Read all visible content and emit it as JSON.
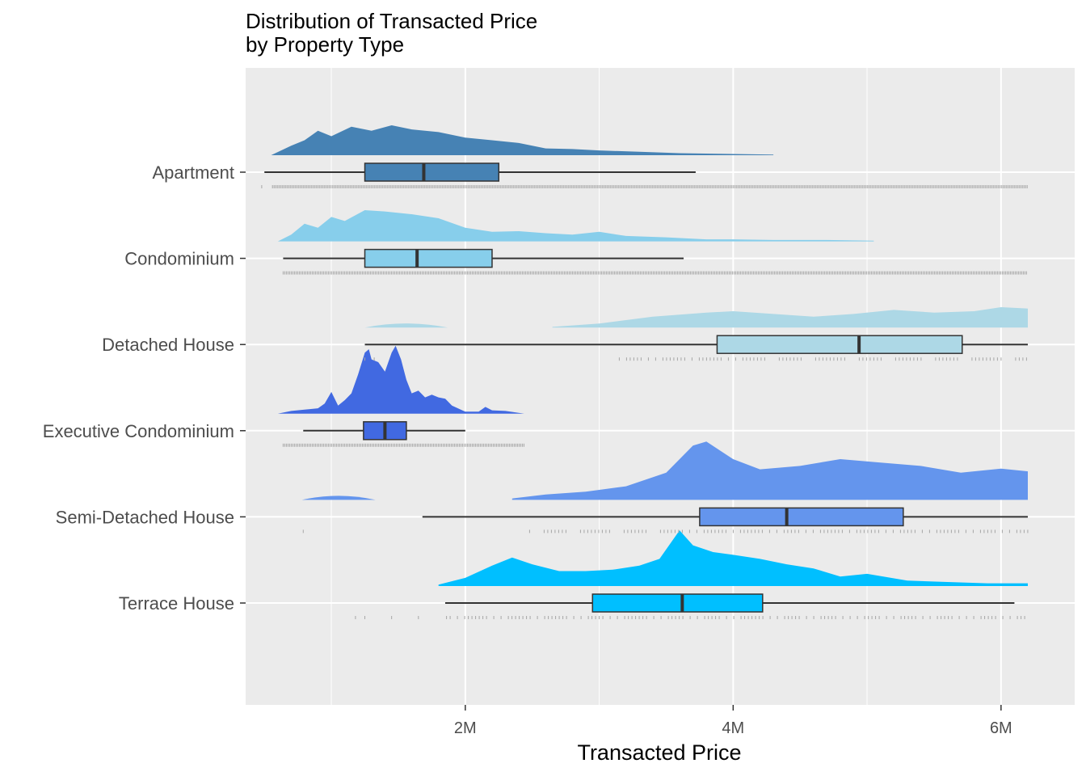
{
  "chart_data": {
    "type": "raincloud",
    "title": "Distribution of Transacted Price",
    "subtitle": "by Property Type",
    "xlabel": "Transacted Price",
    "ylabel": "",
    "xlim": [
      360000,
      6550000
    ],
    "x_ticks": [
      {
        "value": 2000000,
        "label": "2M"
      },
      {
        "value": 4000000,
        "label": "4M"
      },
      {
        "value": 6000000,
        "label": "6M"
      }
    ],
    "grid": true,
    "background": "#ebebeb",
    "categories": [
      {
        "name": "Terrace House",
        "color": "#00bfff",
        "box": {
          "whisker_low": 1850000,
          "q1": 2950000,
          "median": 3620000,
          "q3": 4220000,
          "whisker_high": 6100000
        },
        "density_range": [
          1800000,
          6200000
        ],
        "density": [
          [
            1800000,
            0.02
          ],
          [
            2000000,
            0.12
          ],
          [
            2200000,
            0.3
          ],
          [
            2350000,
            0.42
          ],
          [
            2500000,
            0.32
          ],
          [
            2700000,
            0.22
          ],
          [
            2900000,
            0.22
          ],
          [
            3100000,
            0.24
          ],
          [
            3300000,
            0.3
          ],
          [
            3450000,
            0.4
          ],
          [
            3600000,
            0.82
          ],
          [
            3700000,
            0.6
          ],
          [
            3850000,
            0.5
          ],
          [
            4000000,
            0.46
          ],
          [
            4200000,
            0.4
          ],
          [
            4400000,
            0.32
          ],
          [
            4600000,
            0.26
          ],
          [
            4800000,
            0.14
          ],
          [
            5000000,
            0.18
          ],
          [
            5300000,
            0.08
          ],
          [
            5600000,
            0.06
          ],
          [
            5900000,
            0.04
          ],
          [
            6200000,
            0.04
          ]
        ],
        "rug": {
          "start": 1860000,
          "end": 6200000,
          "extras": [
            1180000,
            1250000,
            1450000,
            1650000
          ]
        }
      },
      {
        "name": "Semi-Detached House",
        "color": "#6495ed",
        "box": {
          "whisker_low": 1680000,
          "q1": 3750000,
          "median": 4400000,
          "q3": 5270000,
          "whisker_high": 6200000
        },
        "density_range": [
          800000,
          6200000
        ],
        "density": [
          [
            2350000,
            0.02
          ],
          [
            2600000,
            0.08
          ],
          [
            2900000,
            0.12
          ],
          [
            3200000,
            0.2
          ],
          [
            3500000,
            0.4
          ],
          [
            3700000,
            0.8
          ],
          [
            3800000,
            0.86
          ],
          [
            4000000,
            0.6
          ],
          [
            4200000,
            0.45
          ],
          [
            4500000,
            0.5
          ],
          [
            4800000,
            0.6
          ],
          [
            5100000,
            0.55
          ],
          [
            5400000,
            0.5
          ],
          [
            5700000,
            0.4
          ],
          [
            6000000,
            0.46
          ],
          [
            6200000,
            0.42
          ]
        ],
        "density_islands": [
          {
            "from": 780000,
            "to": 1330000,
            "height": 0.06
          }
        ],
        "rug": {
          "start": 2480000,
          "end": 6200000,
          "extras": [
            790000
          ]
        }
      },
      {
        "name": "Executive Condominium",
        "color": "#4169e1",
        "box": {
          "whisker_low": 790000,
          "q1": 1240000,
          "median": 1400000,
          "q3": 1560000,
          "whisker_high": 2000000
        },
        "density_range": [
          600000,
          2440000
        ],
        "density": [
          [
            600000,
            0.0
          ],
          [
            700000,
            0.04
          ],
          [
            800000,
            0.06
          ],
          [
            900000,
            0.08
          ],
          [
            950000,
            0.15
          ],
          [
            1000000,
            0.32
          ],
          [
            1050000,
            0.12
          ],
          [
            1100000,
            0.2
          ],
          [
            1150000,
            0.3
          ],
          [
            1200000,
            0.58
          ],
          [
            1250000,
            0.9
          ],
          [
            1280000,
            0.95
          ],
          [
            1300000,
            0.8
          ],
          [
            1350000,
            0.76
          ],
          [
            1400000,
            0.62
          ],
          [
            1450000,
            0.9
          ],
          [
            1480000,
            1.0
          ],
          [
            1520000,
            0.8
          ],
          [
            1560000,
            0.5
          ],
          [
            1600000,
            0.3
          ],
          [
            1650000,
            0.34
          ],
          [
            1700000,
            0.24
          ],
          [
            1750000,
            0.28
          ],
          [
            1800000,
            0.24
          ],
          [
            1850000,
            0.22
          ],
          [
            1900000,
            0.12
          ],
          [
            2000000,
            0.03
          ],
          [
            2100000,
            0.03
          ],
          [
            2150000,
            0.1
          ],
          [
            2200000,
            0.05
          ],
          [
            2300000,
            0.04
          ],
          [
            2440000,
            0.0
          ]
        ],
        "rug": {
          "start": 640000,
          "end": 2440000
        }
      },
      {
        "name": "Detached House",
        "color": "#add8e6",
        "box": {
          "whisker_low": 1250000,
          "q1": 3880000,
          "median": 4940000,
          "q3": 5710000,
          "whisker_high": 6200000
        },
        "density_range": [
          1250000,
          6200000
        ],
        "density": [
          [
            2650000,
            0.01
          ],
          [
            3000000,
            0.06
          ],
          [
            3400000,
            0.16
          ],
          [
            3800000,
            0.22
          ],
          [
            4000000,
            0.24
          ],
          [
            4300000,
            0.2
          ],
          [
            4600000,
            0.16
          ],
          [
            4900000,
            0.2
          ],
          [
            5200000,
            0.26
          ],
          [
            5500000,
            0.22
          ],
          [
            5800000,
            0.24
          ],
          [
            6000000,
            0.3
          ],
          [
            6200000,
            0.28
          ]
        ],
        "density_islands": [
          {
            "from": 1250000,
            "to": 1870000,
            "height": 0.06
          }
        ],
        "rug": {
          "start": 3150000,
          "end": 6200000,
          "extras": [
            1250000,
            1320000
          ]
        }
      },
      {
        "name": "Condominium",
        "color": "#87ceeb",
        "box": {
          "whisker_low": 640000,
          "q1": 1250000,
          "median": 1640000,
          "q3": 2200000,
          "whisker_high": 3630000
        },
        "density_range": [
          600000,
          5100000
        ],
        "density": [
          [
            600000,
            0.0
          ],
          [
            700000,
            0.1
          ],
          [
            800000,
            0.26
          ],
          [
            900000,
            0.2
          ],
          [
            1000000,
            0.36
          ],
          [
            1100000,
            0.3
          ],
          [
            1250000,
            0.46
          ],
          [
            1400000,
            0.44
          ],
          [
            1600000,
            0.4
          ],
          [
            1800000,
            0.34
          ],
          [
            2000000,
            0.2
          ],
          [
            2200000,
            0.14
          ],
          [
            2400000,
            0.15
          ],
          [
            2600000,
            0.12
          ],
          [
            2800000,
            0.1
          ],
          [
            3000000,
            0.14
          ],
          [
            3200000,
            0.08
          ],
          [
            3500000,
            0.06
          ],
          [
            3800000,
            0.03
          ],
          [
            4000000,
            0.03
          ],
          [
            4300000,
            0.02
          ],
          [
            4700000,
            0.02
          ],
          [
            5050000,
            0.01
          ]
        ],
        "rug": {
          "start": 640000,
          "end": 6200000
        }
      },
      {
        "name": "Apartment",
        "color": "#4682b4",
        "box": {
          "whisker_low": 500000,
          "q1": 1250000,
          "median": 1690000,
          "q3": 2250000,
          "whisker_high": 3720000
        },
        "density_range": [
          550000,
          5750000
        ],
        "density": [
          [
            550000,
            0.0
          ],
          [
            700000,
            0.14
          ],
          [
            800000,
            0.22
          ],
          [
            900000,
            0.36
          ],
          [
            1000000,
            0.28
          ],
          [
            1150000,
            0.42
          ],
          [
            1300000,
            0.36
          ],
          [
            1450000,
            0.44
          ],
          [
            1600000,
            0.38
          ],
          [
            1800000,
            0.34
          ],
          [
            2000000,
            0.26
          ],
          [
            2200000,
            0.22
          ],
          [
            2400000,
            0.18
          ],
          [
            2600000,
            0.1
          ],
          [
            2800000,
            0.09
          ],
          [
            3000000,
            0.07
          ],
          [
            3300000,
            0.05
          ],
          [
            3600000,
            0.03
          ],
          [
            3900000,
            0.02
          ],
          [
            4300000,
            0.01
          ]
        ],
        "rug": {
          "start": 560000,
          "end": 6200000,
          "extras": [
            480000
          ]
        }
      }
    ]
  }
}
